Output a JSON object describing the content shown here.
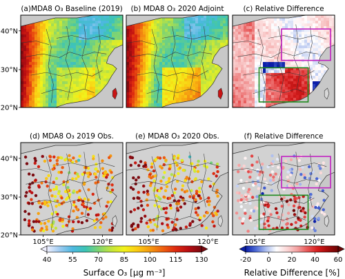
{
  "chart_data": {
    "type": "map-panels",
    "panels": [
      {
        "id": "a",
        "title": "(a)MDA8 O₃ Baseline (2019)",
        "kind": "model",
        "variable": "MDA8 O3",
        "year": "2019",
        "colorbar": "o3"
      },
      {
        "id": "b",
        "title": "(b)  MDA8 O₃ 2020 Adjoint",
        "kind": "model",
        "variable": "MDA8 O3",
        "year": "2020",
        "colorbar": "o3"
      },
      {
        "id": "c",
        "title": "(c)    Relative Difference",
        "kind": "model-diff",
        "colorbar": "rel"
      },
      {
        "id": "d",
        "title": "(d)    MDA8 O₃ 2019 Obs.",
        "kind": "obs",
        "year": "2019",
        "colorbar": "o3"
      },
      {
        "id": "e",
        "title": "(e)   MDA8 O₃ 2020 Obs.",
        "kind": "obs",
        "year": "2020",
        "colorbar": "o3"
      },
      {
        "id": "f",
        "title": "(f)    Relative Difference",
        "kind": "obs-diff",
        "colorbar": "rel"
      }
    ],
    "lat_ticks": [
      "40°N",
      "30°N",
      "20°N"
    ],
    "lon_ticks": [
      "105°E",
      "120°E"
    ],
    "colorbars": {
      "o3": {
        "label": "Surface O₃ [μg m⁻³]",
        "range": [
          40,
          130
        ],
        "ticks": [
          40,
          55,
          70,
          85,
          100,
          115,
          130
        ],
        "extend": "both",
        "colors": [
          "#f0f0ff",
          "#9ecbf0",
          "#4db8e0",
          "#3cc4b4",
          "#7fd472",
          "#c4e53c",
          "#f2f21a",
          "#fbcb13",
          "#f59a10",
          "#ee6010",
          "#dd2a10",
          "#b80d12",
          "#7a0a10"
        ]
      },
      "rel": {
        "label": "Relative Difference [%]",
        "range": [
          -20,
          60
        ],
        "ticks": [
          -20,
          0,
          20,
          40,
          60
        ],
        "extend": "both",
        "colors": [
          "#0b1ea8",
          "#4e6bd6",
          "#aebfee",
          "#ffffff",
          "#fbd8d8",
          "#f3a2a2",
          "#e85858",
          "#d61d1d",
          "#a30b0b",
          "#6a0606"
        ]
      }
    },
    "boxes": [
      {
        "panels": [
          "c",
          "f"
        ],
        "color": "#c020c0",
        "region": "north"
      },
      {
        "panels": [
          "c",
          "f"
        ],
        "color": "#1d8a1d",
        "region": "central"
      }
    ]
  }
}
